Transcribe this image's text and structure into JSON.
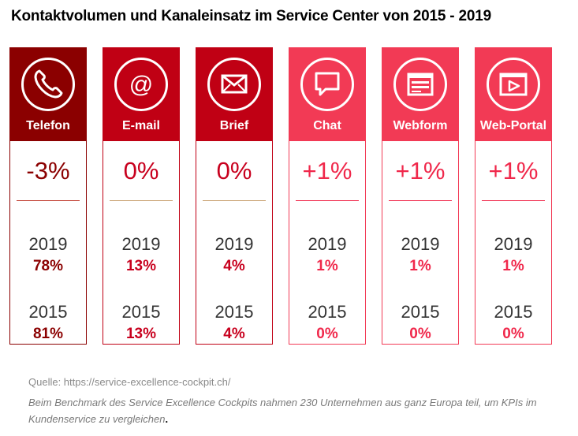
{
  "page": {
    "title": "Kontaktvolumen und Kanaleinsatz im Service Center von 2015 - 2019",
    "source": "Quelle: https://service-excellence-cockpit.ch/",
    "note": "Beim Benchmark des Service Excellence Cockpits nahmen 230 Unternehmen aus ganz Europa teil, um KPIs im Kundenservice zu vergleichen",
    "note_end": "."
  },
  "chart_data": {
    "type": "table",
    "categories": [
      "Telefon",
      "E-mail",
      "Brief",
      "Chat",
      "Webform",
      "Web-Portal"
    ],
    "icons": [
      "phone-icon",
      "at-sign-icon",
      "envelope-icon",
      "chat-bubble-icon",
      "web-form-icon",
      "play-window-icon"
    ],
    "change": [
      "-3%",
      "0%",
      "0%",
      "+1%",
      "+1%",
      "+1%"
    ],
    "years": [
      "2019",
      "2015"
    ],
    "series": [
      {
        "name": "2019",
        "values": [
          "78%",
          "13%",
          "4%",
          "1%",
          "1%",
          "1%"
        ]
      },
      {
        "name": "2015",
        "values": [
          "81%",
          "13%",
          "4%",
          "0%",
          "0%",
          "0%"
        ]
      }
    ],
    "head_colors": [
      "#8b0000",
      "#c00014",
      "#c00014",
      "#f23a55",
      "#f23a55",
      "#f23a55"
    ],
    "value_colors": [
      "#8b0000",
      "#c8001e",
      "#c8001e",
      "#f0284b",
      "#f0284b",
      "#f0284b"
    ],
    "divider_colors": [
      "#c0392b",
      "#c8a070",
      "#c8a070",
      "#f0284b",
      "#f0284b",
      "#f0284b"
    ]
  }
}
